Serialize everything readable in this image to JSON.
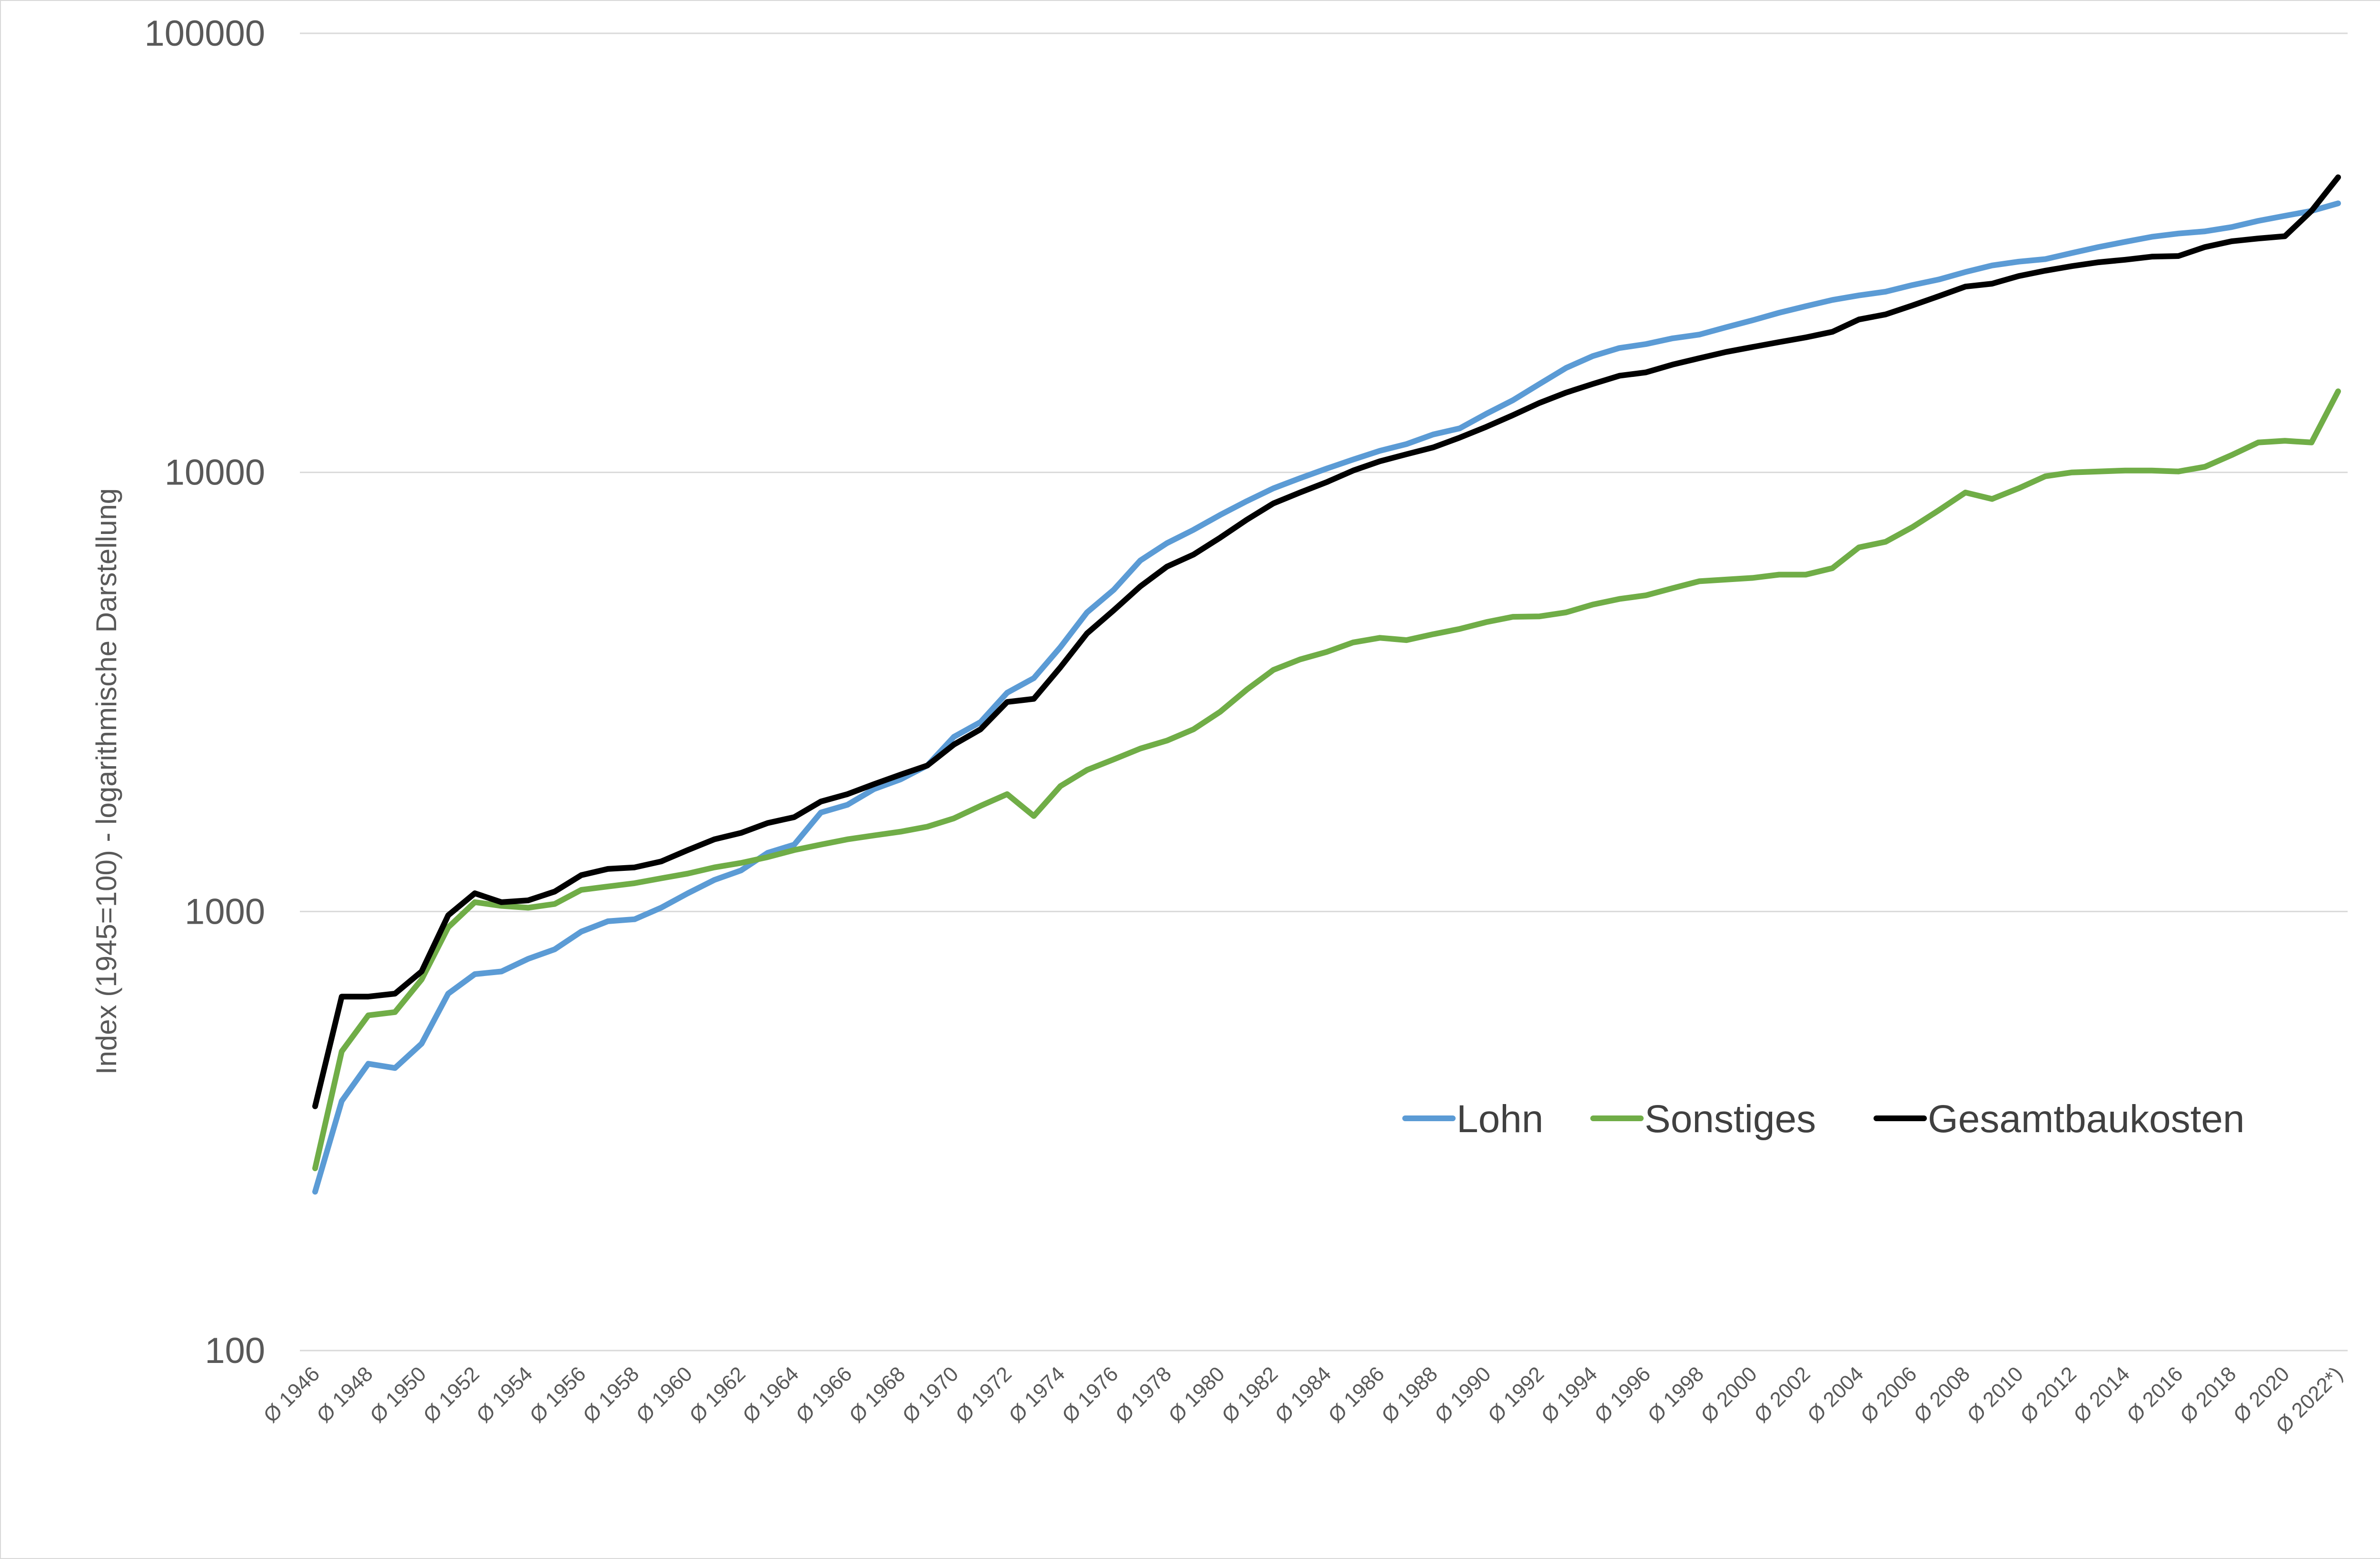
{
  "chart_data": {
    "type": "line",
    "title": "",
    "ylabel": "Index (1945=100) - logarithmische Darstellung",
    "xlabel": "",
    "yscale": "log",
    "ylim": [
      100,
      100000
    ],
    "ytick_labels": [
      "100",
      "1000",
      "10000",
      "100000"
    ],
    "grid": "horizontal",
    "legend_position": "right",
    "categories": [
      "Ø 1946",
      "Ø 1947",
      "Ø 1948",
      "Ø 1949",
      "Ø 1950",
      "Ø 1951",
      "Ø 1952",
      "Ø 1953",
      "Ø 1954",
      "Ø 1955",
      "Ø 1956",
      "Ø 1957",
      "Ø 1958",
      "Ø 1959",
      "Ø 1960",
      "Ø 1961",
      "Ø 1962",
      "Ø 1963",
      "Ø 1964",
      "Ø 1965",
      "Ø 1966",
      "Ø 1967",
      "Ø 1968",
      "Ø 1969",
      "Ø 1970",
      "Ø 1971",
      "Ø 1972",
      "Ø 1973",
      "Ø 1974",
      "Ø 1975",
      "Ø 1976",
      "Ø 1977",
      "Ø 1978",
      "Ø 1979",
      "Ø 1980",
      "Ø 1981",
      "Ø 1982",
      "Ø 1983",
      "Ø 1984",
      "Ø 1985",
      "Ø 1986",
      "Ø 1987",
      "Ø 1988",
      "Ø 1989",
      "Ø 1990",
      "Ø 1991",
      "Ø 1992",
      "Ø 1993",
      "Ø 1994",
      "Ø 1995",
      "Ø 1996",
      "Ø 1997",
      "Ø 1998",
      "Ø 1999",
      "Ø 2000",
      "Ø 2001",
      "Ø 2002",
      "Ø 2003",
      "Ø 2004",
      "Ø 2005",
      "Ø 2006",
      "Ø 2007",
      "Ø 2008",
      "Ø 2009",
      "Ø 2010",
      "Ø 2011",
      "Ø 2012",
      "Ø 2013",
      "Ø 2014",
      "Ø 2015",
      "Ø 2016",
      "Ø 2017",
      "Ø 2018",
      "Ø 2019",
      "Ø 2020",
      "Ø 2021",
      "Ø 2022*)"
    ],
    "visible_tick_labels": [
      "Ø 1946",
      "Ø 1948",
      "Ø 1950",
      "Ø 1952",
      "Ø 1954",
      "Ø 1956",
      "Ø 1958",
      "Ø 1960",
      "Ø 1962",
      "Ø 1964",
      "Ø 1966",
      "Ø 1968",
      "Ø 1970",
      "Ø 1972",
      "Ø 1974",
      "Ø 1976",
      "Ø 1978",
      "Ø 1980",
      "Ø 1982",
      "Ø 1984",
      "Ø 1986",
      "Ø 1988",
      "Ø 1990",
      "Ø 1992",
      "Ø 1994",
      "Ø 1996",
      "Ø 1998",
      "Ø 2000",
      "Ø 2002",
      "Ø 2004",
      "Ø 2006",
      "Ø 2008",
      "Ø 2010",
      "Ø 2012",
      "Ø 2014",
      "Ø 2016",
      "Ø 2018",
      "Ø 2020",
      "Ø 2022*)"
    ],
    "series": [
      {
        "name": "Lohn",
        "color": "#5b9bd5",
        "values": [
          230,
          370,
          450,
          440,
          500,
          650,
          720,
          730,
          780,
          820,
          900,
          950,
          960,
          1020,
          1100,
          1180,
          1240,
          1360,
          1420,
          1680,
          1750,
          1900,
          2000,
          2150,
          2500,
          2700,
          3150,
          3400,
          4000,
          4800,
          5400,
          6300,
          6900,
          7400,
          8000,
          8600,
          9200,
          9700,
          10200,
          10700,
          11200,
          11600,
          12200,
          12600,
          13600,
          14600,
          15900,
          17300,
          18400,
          19200,
          19600,
          20200,
          20600,
          21400,
          22200,
          23100,
          23900,
          24700,
          25300,
          25800,
          26700,
          27500,
          28600,
          29600,
          30200,
          30600,
          31600,
          32600,
          33500,
          34400,
          35000,
          35400,
          36200,
          37400,
          38400,
          39400,
          41000
        ]
      },
      {
        "name": "Sonstiges",
        "color": "#70ad47",
        "values": [
          260,
          480,
          580,
          590,
          700,
          920,
          1050,
          1030,
          1020,
          1040,
          1120,
          1140,
          1160,
          1190,
          1220,
          1260,
          1290,
          1330,
          1380,
          1420,
          1460,
          1490,
          1520,
          1560,
          1630,
          1740,
          1850,
          1650,
          1930,
          2100,
          2220,
          2350,
          2450,
          2600,
          2850,
          3200,
          3550,
          3750,
          3900,
          4100,
          4200,
          4150,
          4280,
          4400,
          4560,
          4690,
          4700,
          4800,
          5000,
          5150,
          5250,
          5450,
          5650,
          5700,
          5750,
          5850,
          5850,
          6050,
          6750,
          6950,
          7500,
          8200,
          9000,
          8700,
          9200,
          9800,
          10000,
          10050,
          10100,
          10100,
          10050,
          10300,
          10950,
          11700,
          11800,
          11700,
          15300
        ]
      },
      {
        "name": "Gesamtbaukosten",
        "color": "#000000",
        "values": [
          360,
          640,
          640,
          650,
          730,
          980,
          1100,
          1050,
          1060,
          1110,
          1210,
          1250,
          1260,
          1300,
          1380,
          1460,
          1510,
          1590,
          1640,
          1780,
          1850,
          1950,
          2050,
          2150,
          2400,
          2600,
          3000,
          3050,
          3600,
          4300,
          4850,
          5500,
          6100,
          6500,
          7100,
          7800,
          8500,
          9000,
          9500,
          10100,
          10600,
          11000,
          11400,
          12000,
          12700,
          13500,
          14400,
          15200,
          15900,
          16600,
          16900,
          17600,
          18200,
          18800,
          19300,
          19800,
          20300,
          20900,
          22300,
          22900,
          24000,
          25200,
          26500,
          26900,
          28000,
          28800,
          29500,
          30100,
          30500,
          31000,
          31100,
          32600,
          33600,
          34100,
          34500,
          39400,
          47000
        ]
      }
    ]
  }
}
